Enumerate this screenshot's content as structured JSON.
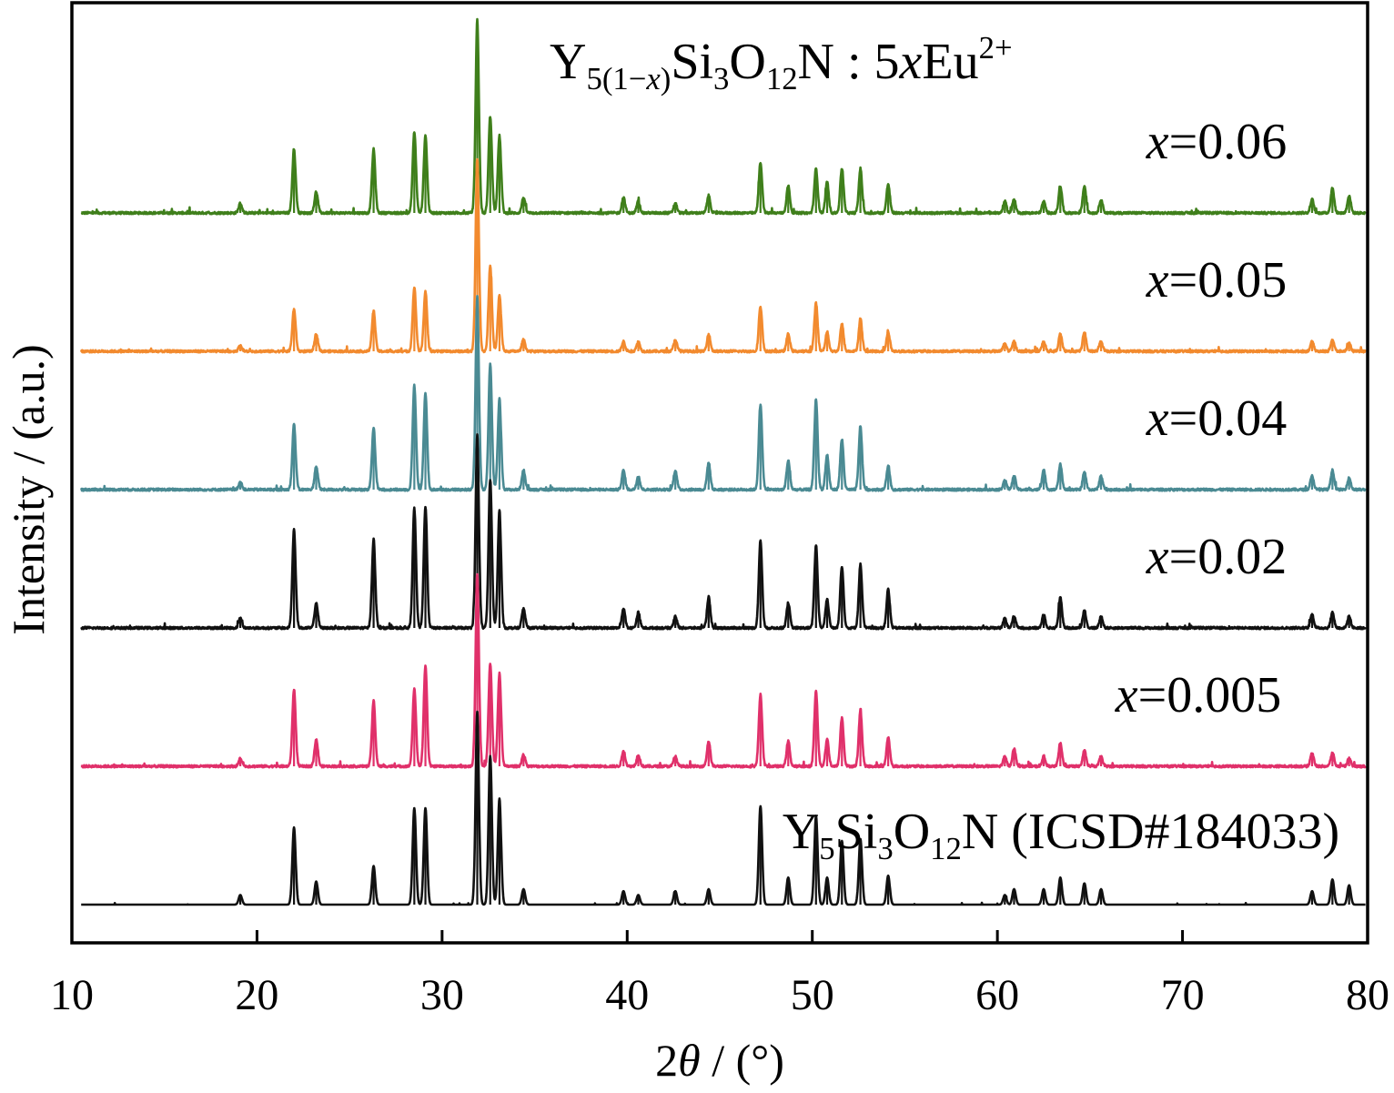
{
  "chart_data": {
    "type": "line",
    "title": {
      "parts": [
        {
          "text": "Y",
          "style": "normal"
        },
        {
          "text": "5(1−",
          "style": "sub"
        },
        {
          "text": "x",
          "style": "sub-italic"
        },
        {
          "text": ")",
          "style": "sub"
        },
        {
          "text": "Si",
          "style": "normal"
        },
        {
          "text": "3",
          "style": "sub"
        },
        {
          "text": "O",
          "style": "normal"
        },
        {
          "text": "12",
          "style": "sub"
        },
        {
          "text": "N : 5",
          "style": "normal"
        },
        {
          "text": "x",
          "style": "italic"
        },
        {
          "text": "Eu",
          "style": "normal"
        },
        {
          "text": "2+",
          "style": "sup"
        }
      ]
    },
    "xlabel": {
      "prefix": "2",
      "symbol": "θ",
      "suffix": " / (°)"
    },
    "ylabel": "Intensity / (a.u.)",
    "xlim": [
      10,
      80
    ],
    "xticks": [
      10,
      20,
      30,
      40,
      50,
      60,
      70,
      80
    ],
    "y_ticks_shown": false,
    "grid": false,
    "legend": "inline labels at right of each pattern",
    "peaks_2theta": [
      19.1,
      22.0,
      23.2,
      26.3,
      28.5,
      29.1,
      31.9,
      32.6,
      33.1,
      34.4,
      39.8,
      40.6,
      42.6,
      44.4,
      47.2,
      48.7,
      50.2,
      50.8,
      51.6,
      52.6,
      54.1,
      60.4,
      60.9,
      62.5,
      63.4,
      64.7,
      65.6,
      77.0,
      78.1,
      79.0
    ],
    "series": [
      {
        "name": "x=0.06",
        "label_var": "x",
        "label_value": "=0.06",
        "color": "#3f7f1b",
        "kind": "measured",
        "baseline_offset": 5,
        "relative_intensity": [
          0.05,
          0.33,
          0.11,
          0.33,
          0.42,
          0.4,
          1.0,
          0.5,
          0.4,
          0.08,
          0.08,
          0.06,
          0.05,
          0.09,
          0.26,
          0.14,
          0.23,
          0.16,
          0.23,
          0.23,
          0.15,
          0.06,
          0.07,
          0.06,
          0.14,
          0.14,
          0.07,
          0.07,
          0.13,
          0.09
        ]
      },
      {
        "name": "x=0.05",
        "label_var": "x",
        "label_value": "=0.05",
        "color": "#f28a2e",
        "kind": "measured",
        "baseline_offset": 4,
        "relative_intensity": [
          0.03,
          0.22,
          0.09,
          0.21,
          0.33,
          0.31,
          1.0,
          0.44,
          0.29,
          0.06,
          0.05,
          0.05,
          0.06,
          0.09,
          0.23,
          0.09,
          0.25,
          0.1,
          0.14,
          0.17,
          0.1,
          0.04,
          0.05,
          0.05,
          0.09,
          0.1,
          0.05,
          0.05,
          0.06,
          0.04
        ]
      },
      {
        "name": "x=0.04",
        "label_var": "x",
        "label_value": "=0.04",
        "color": "#4a8a93",
        "kind": "measured",
        "baseline_offset": 3,
        "relative_intensity": [
          0.04,
          0.34,
          0.12,
          0.32,
          0.54,
          0.5,
          1.0,
          0.65,
          0.47,
          0.1,
          0.1,
          0.07,
          0.1,
          0.14,
          0.44,
          0.15,
          0.47,
          0.18,
          0.26,
          0.33,
          0.12,
          0.05,
          0.07,
          0.1,
          0.13,
          0.09,
          0.07,
          0.07,
          0.1,
          0.06
        ]
      },
      {
        "name": "x=0.02",
        "label_var": "x",
        "label_value": "=0.02",
        "color": "#111111",
        "kind": "measured",
        "baseline_offset": 2,
        "relative_intensity": [
          0.05,
          0.51,
          0.13,
          0.46,
          0.62,
          0.63,
          1.0,
          0.77,
          0.61,
          0.1,
          0.1,
          0.08,
          0.06,
          0.16,
          0.45,
          0.13,
          0.43,
          0.15,
          0.32,
          0.33,
          0.2,
          0.05,
          0.06,
          0.07,
          0.16,
          0.09,
          0.06,
          0.07,
          0.08,
          0.06
        ]
      },
      {
        "name": "x=0.005",
        "label_var": "x",
        "label_value": "=0.005",
        "color": "#e0306a",
        "kind": "measured",
        "baseline_offset": 1,
        "relative_intensity": [
          0.04,
          0.4,
          0.14,
          0.34,
          0.4,
          0.52,
          1.0,
          0.53,
          0.48,
          0.06,
          0.08,
          0.06,
          0.05,
          0.13,
          0.37,
          0.13,
          0.39,
          0.14,
          0.25,
          0.29,
          0.15,
          0.05,
          0.09,
          0.05,
          0.12,
          0.08,
          0.05,
          0.07,
          0.07,
          0.04
        ]
      },
      {
        "name": "Y5Si3O12N (ICSD#184033)",
        "label_parts": [
          {
            "text": "Y",
            "style": "normal"
          },
          {
            "text": "5",
            "style": "sub"
          },
          {
            "text": "Si",
            "style": "normal"
          },
          {
            "text": "3",
            "style": "sub"
          },
          {
            "text": "O",
            "style": "normal"
          },
          {
            "text": "12",
            "style": "sub"
          },
          {
            "text": "N (ICSD#184033)",
            "style": "normal"
          }
        ],
        "color": "#111111",
        "kind": "reference",
        "baseline_offset": 0,
        "relative_intensity": [
          0.05,
          0.4,
          0.12,
          0.2,
          0.5,
          0.5,
          1.0,
          0.77,
          0.55,
          0.08,
          0.07,
          0.05,
          0.07,
          0.08,
          0.51,
          0.14,
          0.46,
          0.14,
          0.33,
          0.34,
          0.15,
          0.05,
          0.08,
          0.08,
          0.14,
          0.11,
          0.08,
          0.07,
          0.13,
          0.1
        ]
      }
    ]
  }
}
